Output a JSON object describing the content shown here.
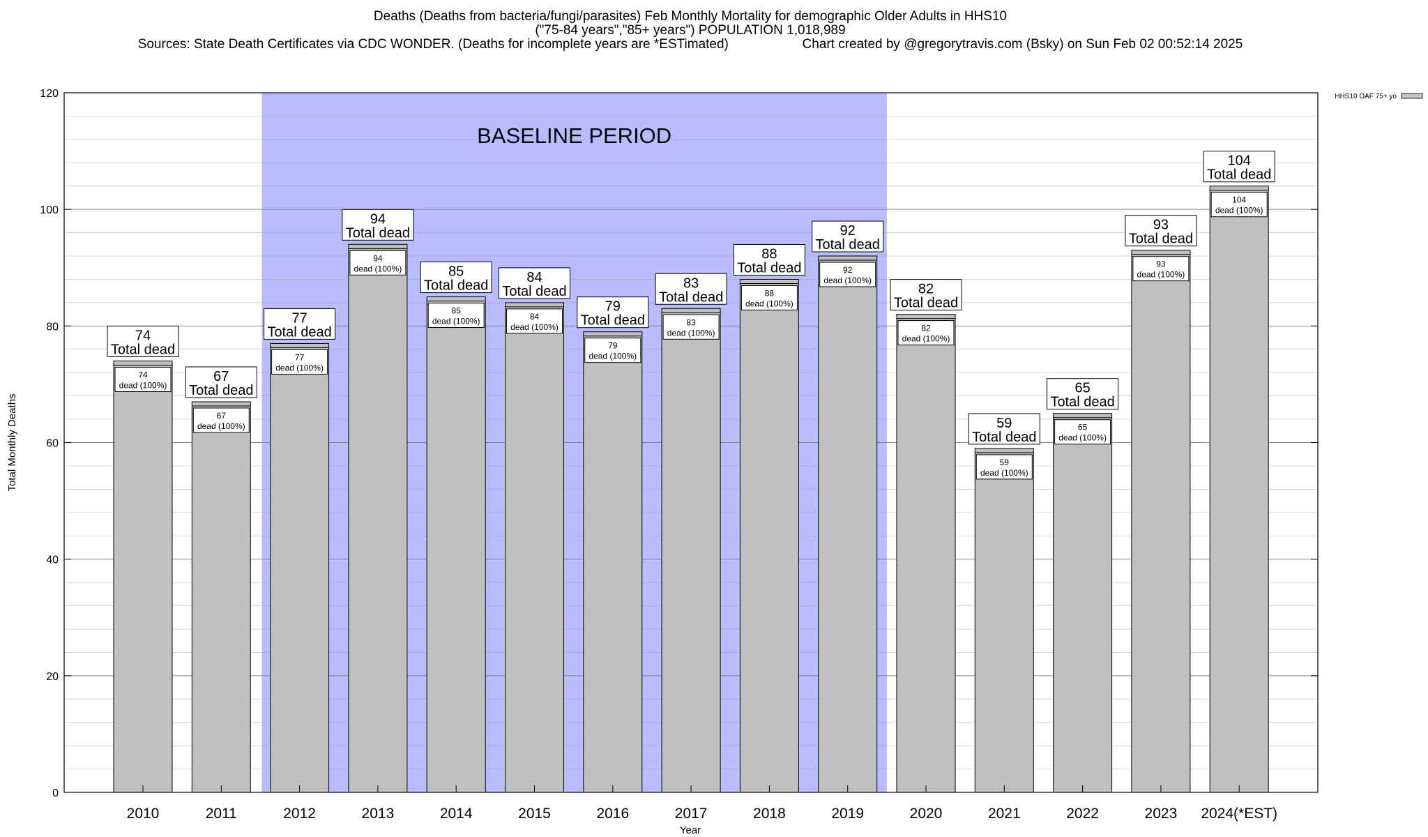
{
  "header": {
    "title_line1": "Deaths (Deaths from bacteria/fungi/parasites) Feb Monthly Mortality for demographic Older Adults in HHS10",
    "title_line2": "(\"75-84 years\",\"85+ years\") POPULATION 1,018,989",
    "sources": "Sources: State Death Certificates via CDC WONDER. (Deaths for incomplete years are *ESTimated)",
    "credit": "Chart created by @gregorytravis.com (Bsky) on Sun Feb 02 00:52:14 2025"
  },
  "chart_data": {
    "type": "bar",
    "xlabel": "Year",
    "ylabel": "Total Monthly Deaths",
    "ylim": [
      0,
      120
    ],
    "y_ticks": [
      0,
      20,
      40,
      60,
      80,
      100,
      120
    ],
    "grid": true,
    "legend": {
      "placement": "top-right",
      "entries": [
        "HHS10 OAF 75+ yo"
      ]
    },
    "categories": [
      "2010",
      "2011",
      "2012",
      "2013",
      "2014",
      "2015",
      "2016",
      "2017",
      "2018",
      "2019",
      "2020",
      "2021",
      "2022",
      "2023",
      "2024(*EST)"
    ],
    "series": [
      {
        "name": "HHS10 OAF 75+ yo",
        "values": [
          74,
          67,
          77,
          94,
          85,
          84,
          79,
          83,
          88,
          92,
          82,
          59,
          65,
          93,
          104
        ]
      }
    ],
    "total_label": "Total dead",
    "inner_label": "dead (100%)",
    "baseline": {
      "label": "BASELINE PERIOD",
      "from": "2012",
      "to": "2019"
    },
    "colors": {
      "bar": "#c0c0c0",
      "baseline": "#bbbbff"
    }
  }
}
